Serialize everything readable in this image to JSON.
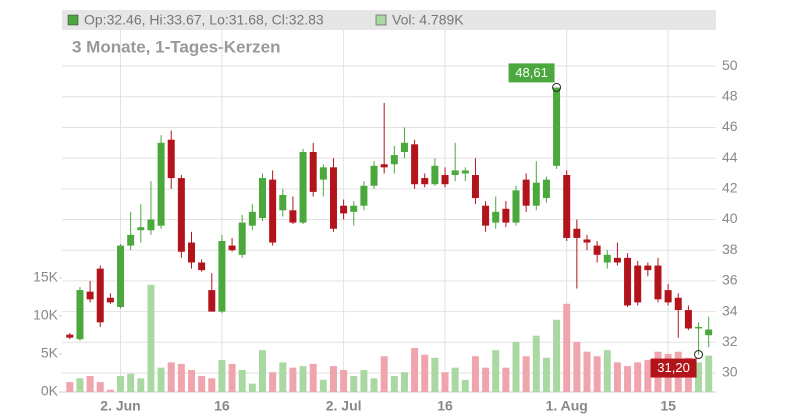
{
  "chart_data": {
    "type": "candlestick",
    "header": "Op:32.46, Hi:33.67, Lo:31.68, Cl:32.83",
    "volume_header": "Vol: 4.789K",
    "subtitle": "3 Monate, 1-Tages-Kerzen",
    "categories": [
      null,
      null,
      null,
      null,
      null,
      "2. Jun",
      null,
      null,
      null,
      null,
      null,
      null,
      null,
      null,
      null,
      "16",
      null,
      null,
      null,
      null,
      null,
      null,
      null,
      null,
      null,
      null,
      null,
      "2. Jul",
      null,
      null,
      null,
      null,
      null,
      null,
      null,
      null,
      null,
      "16",
      null,
      null,
      null,
      null,
      null,
      null,
      null,
      null,
      null,
      null,
      null,
      "1. Aug",
      null,
      null,
      null,
      null,
      null,
      null,
      null,
      null,
      null,
      "15",
      null,
      null,
      null,
      null
    ],
    "open": [
      32.5,
      32.2,
      35.3,
      36.8,
      34.9,
      34.3,
      38.3,
      39.3,
      39.3,
      39.6,
      45.2,
      42.7,
      38.5,
      37.2,
      35.4,
      34.0,
      38.3,
      37.7,
      39.6,
      40.1,
      42.6,
      40.6,
      40.6,
      39.8,
      44.4,
      42.6,
      43.4,
      40.9,
      40.5,
      40.9,
      42.2,
      43.6,
      43.6,
      44.4,
      44.9,
      42.7,
      42.3,
      42.9,
      42.9,
      43.0,
      42.9,
      40.9,
      39.8,
      40.7,
      39.8,
      42.6,
      40.9,
      41.4,
      43.5,
      42.9,
      39.4,
      38.7,
      38.3,
      37.2,
      37.5,
      37.5,
      37.0,
      37.0,
      37.0,
      35.4,
      34.9,
      34.1,
      32.9,
      32.46
    ],
    "high": [
      32.6,
      35.6,
      36.0,
      37.0,
      35.2,
      38.4,
      40.5,
      41.0,
      42.5,
      45.5,
      45.8,
      42.9,
      39.2,
      37.4,
      36.5,
      39.0,
      38.8,
      40.3,
      41.0,
      43.0,
      43.2,
      42.0,
      41.5,
      44.6,
      45.0,
      43.6,
      44.0,
      41.3,
      41.2,
      42.5,
      43.8,
      47.6,
      44.8,
      46.0,
      45.2,
      43.0,
      44.0,
      43.4,
      45.0,
      43.4,
      44.0,
      41.2,
      41.5,
      41.2,
      42.2,
      43.0,
      43.8,
      42.8,
      48.61,
      43.2,
      40.0,
      39.0,
      38.6,
      38.0,
      38.5,
      37.8,
      37.3,
      37.2,
      37.5,
      35.8,
      35.2,
      34.4,
      33.3,
      33.67
    ],
    "low": [
      32.2,
      32.1,
      34.6,
      33.0,
      34.5,
      34.2,
      38.0,
      38.5,
      39.0,
      39.4,
      42.0,
      37.5,
      36.8,
      36.6,
      34.0,
      33.9,
      37.9,
      37.5,
      39.3,
      39.9,
      38.3,
      40.2,
      39.7,
      39.7,
      41.5,
      41.5,
      39.2,
      40.0,
      39.6,
      40.6,
      42.0,
      43.0,
      43.0,
      44.0,
      42.0,
      42.1,
      42.2,
      42.1,
      42.5,
      42.5,
      41.0,
      39.2,
      39.4,
      39.5,
      39.6,
      40.5,
      40.6,
      41.1,
      43.3,
      38.6,
      35.5,
      38.0,
      37.2,
      36.8,
      37.0,
      34.3,
      34.4,
      36.3,
      34.6,
      34.4,
      32.3,
      32.8,
      31.2,
      31.68
    ],
    "close": [
      32.3,
      35.4,
      34.8,
      33.3,
      34.6,
      38.3,
      39.0,
      39.5,
      40.0,
      45.0,
      42.7,
      37.9,
      37.2,
      36.7,
      34.0,
      38.6,
      38.0,
      39.8,
      40.5,
      42.7,
      38.5,
      41.6,
      39.8,
      44.4,
      41.8,
      43.4,
      39.4,
      40.4,
      40.9,
      42.2,
      43.5,
      43.4,
      44.2,
      45.0,
      42.3,
      42.3,
      43.5,
      42.3,
      43.2,
      43.2,
      41.4,
      39.6,
      40.5,
      39.8,
      41.9,
      40.9,
      42.4,
      42.6,
      48.6,
      38.8,
      38.8,
      38.5,
      37.7,
      37.7,
      37.2,
      34.4,
      34.6,
      36.7,
      34.8,
      34.6,
      34.1,
      32.9,
      33.0,
      32.83
    ],
    "volume": [
      1.3,
      1.8,
      2.1,
      1.3,
      0.3,
      2.1,
      2.4,
      1.8,
      14.1,
      3.2,
      3.9,
      3.7,
      2.9,
      2.1,
      1.8,
      4.2,
      3.7,
      2.9,
      1.1,
      5.5,
      2.6,
      3.9,
      3.2,
      3.4,
      3.7,
      1.6,
      3.4,
      2.9,
      2.1,
      2.9,
      1.8,
      4.7,
      2.1,
      2.6,
      5.8,
      4.9,
      4.5,
      2.6,
      3.2,
      1.6,
      4.7,
      3.2,
      5.5,
      3.2,
      6.6,
      4.7,
      7.4,
      4.5,
      9.5,
      11.6,
      6.6,
      5.3,
      4.7,
      5.5,
      3.9,
      3.4,
      3.9,
      4.2,
      5.3,
      5.0,
      5.3,
      4.5,
      3.9,
      4.789
    ],
    "up_color": "#4aa83c",
    "down_color": "#b3141c",
    "volume_up_color": "#aad8a2",
    "volume_down_color": "#f0a4ae",
    "ylim": [
      28.76,
      52.35
    ],
    "yticks": [
      30,
      32,
      34,
      36,
      38,
      40,
      42,
      44,
      46,
      48,
      50
    ],
    "volume_ylim": [
      0,
      47.6
    ],
    "volume_ticks": [
      {
        "value": 0,
        "label": "0K"
      },
      {
        "value": 5,
        "label": "5K"
      },
      {
        "value": 10,
        "label": "10K"
      },
      {
        "value": 15,
        "label": "15K"
      }
    ],
    "annotations": [
      {
        "label": "48,61",
        "value": 48.61
      },
      {
        "label": "31,20",
        "value": 31.2
      }
    ],
    "grid": true
  }
}
